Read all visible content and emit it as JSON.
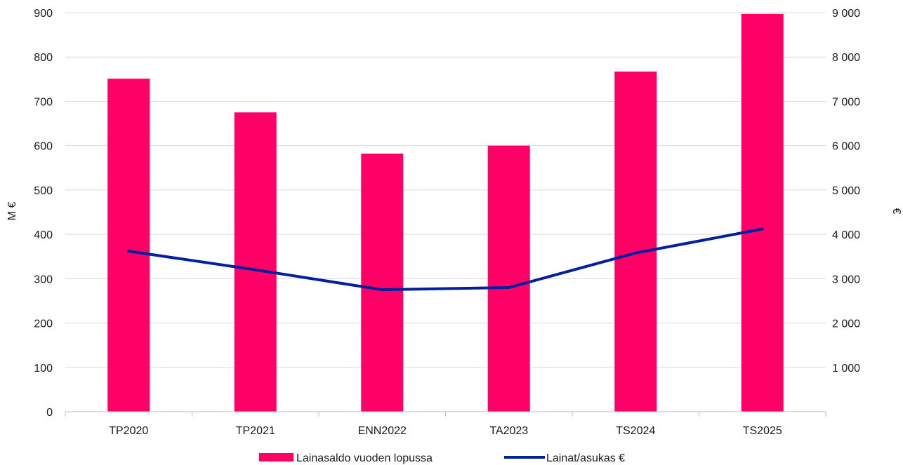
{
  "chart_data": {
    "type": "bar",
    "categories": [
      "TP2020",
      "TP2021",
      "ENN2022",
      "TA2023",
      "TS2024",
      "TS2025"
    ],
    "series": [
      {
        "name": "Lainasaldo vuoden lopussa",
        "type": "bar",
        "axis": "left",
        "color": "#ff0066",
        "values": [
          751,
          675,
          582,
          600,
          767,
          897
        ]
      },
      {
        "name": "Lainat/asukas €",
        "type": "line",
        "axis": "right",
        "color": "#00209f",
        "values": [
          3620,
          3200,
          2750,
          2800,
          3580,
          4120
        ]
      }
    ],
    "ylabel": "M €",
    "ylabel_right": "€",
    "ylim": [
      0,
      900
    ],
    "ylim_right": [
      0,
      9000
    ],
    "yticks": [
      "0",
      "100",
      "200",
      "300",
      "400",
      "500",
      "600",
      "700",
      "800",
      "900"
    ],
    "yticks_right": [
      "1 000",
      "2 000",
      "3 000",
      "4 000",
      "5 000",
      "6 000",
      "7 000",
      "8 000",
      "9 000"
    ],
    "grid": true,
    "legend": "bottom-center"
  }
}
